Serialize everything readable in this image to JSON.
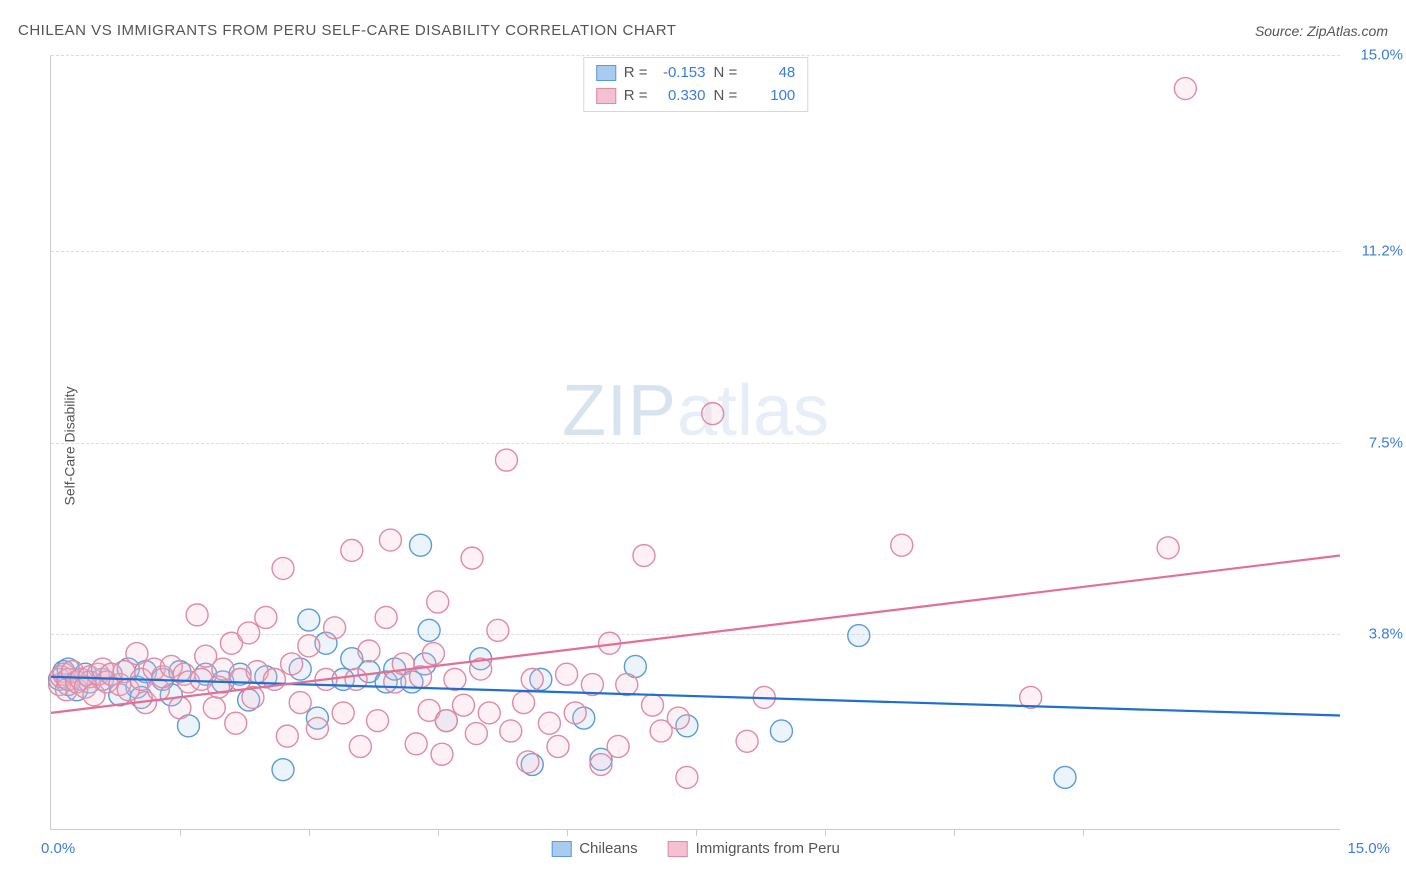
{
  "title": "CHILEAN VS IMMIGRANTS FROM PERU SELF-CARE DISABILITY CORRELATION CHART",
  "source_prefix": "Source: ",
  "source_link": "ZipAtlas.com",
  "ylabel": "Self-Care Disability",
  "watermark_a": "ZIP",
  "watermark_b": "atlas",
  "chart": {
    "type": "scatter",
    "xlim": [
      0.0,
      15.0
    ],
    "ylim": [
      0.0,
      15.0
    ],
    "plot_background": "#ffffff",
    "grid_color": "#dddddd",
    "axis_color": "#cccccc",
    "tick_label_color": "#3b7dd8",
    "tick_label_fontsize": 15,
    "yticks": [
      {
        "value": 3.8,
        "label": "3.8%"
      },
      {
        "value": 7.5,
        "label": "7.5%"
      },
      {
        "value": 11.2,
        "label": "11.2%"
      },
      {
        "value": 15.0,
        "label": "15.0%"
      }
    ],
    "xtick_values": [
      1.5,
      3.0,
      4.5,
      6.0,
      7.5,
      9.0,
      10.5,
      12.0
    ],
    "xaxis_min_label": "0.0%",
    "xaxis_max_label": "15.0%",
    "marker_radius": 11,
    "marker_stroke_width": 1.4,
    "marker_fill_opacity": 0.22,
    "trend_line_width": 2.2
  },
  "series": [
    {
      "name": "Chileans",
      "color_stroke": "#5a9bd5",
      "color_fill": "#a9cbef",
      "trend_color": "#1f6fd0",
      "R": "-0.153",
      "N": "48",
      "trend": {
        "x1": 0.0,
        "y1": 2.95,
        "x2": 15.0,
        "y2": 2.2
      },
      "points": [
        [
          0.1,
          2.9
        ],
        [
          0.15,
          3.05
        ],
        [
          0.2,
          2.8
        ],
        [
          0.2,
          3.1
        ],
        [
          0.3,
          2.7
        ],
        [
          0.4,
          3.0
        ],
        [
          0.45,
          2.85
        ],
        [
          0.6,
          2.9
        ],
        [
          0.7,
          3.0
        ],
        [
          0.8,
          2.6
        ],
        [
          0.9,
          3.1
        ],
        [
          1.0,
          2.75
        ],
        [
          1.05,
          2.55
        ],
        [
          1.1,
          3.05
        ],
        [
          1.3,
          2.9
        ],
        [
          1.4,
          2.6
        ],
        [
          1.5,
          3.05
        ],
        [
          1.6,
          2.0
        ],
        [
          1.8,
          3.0
        ],
        [
          2.0,
          2.85
        ],
        [
          2.2,
          3.0
        ],
        [
          2.3,
          2.5
        ],
        [
          2.5,
          2.95
        ],
        [
          2.7,
          1.15
        ],
        [
          2.9,
          3.1
        ],
        [
          3.0,
          4.05
        ],
        [
          3.1,
          2.15
        ],
        [
          3.2,
          3.6
        ],
        [
          3.4,
          2.9
        ],
        [
          3.5,
          3.3
        ],
        [
          3.7,
          3.05
        ],
        [
          3.9,
          2.85
        ],
        [
          4.0,
          3.1
        ],
        [
          4.2,
          2.85
        ],
        [
          4.3,
          5.5
        ],
        [
          4.35,
          3.2
        ],
        [
          4.4,
          3.85
        ],
        [
          4.6,
          2.1
        ],
        [
          5.0,
          3.3
        ],
        [
          5.6,
          1.25
        ],
        [
          5.7,
          2.9
        ],
        [
          6.2,
          2.15
        ],
        [
          6.4,
          1.35
        ],
        [
          6.8,
          3.15
        ],
        [
          7.4,
          2.0
        ],
        [
          8.5,
          1.9
        ],
        [
          9.4,
          3.75
        ],
        [
          11.8,
          1.0
        ]
      ]
    },
    {
      "name": "Immigrants from Peru",
      "color_stroke": "#e08aa4",
      "color_fill": "#f5c0d0",
      "trend_color": "#e36f94",
      "R": "0.330",
      "N": "100",
      "trend": {
        "x1": 0.0,
        "y1": 2.25,
        "x2": 15.0,
        "y2": 5.3
      },
      "points": [
        [
          0.1,
          2.8
        ],
        [
          0.12,
          2.95
        ],
        [
          0.15,
          3.0
        ],
        [
          0.18,
          2.7
        ],
        [
          0.2,
          2.9
        ],
        [
          0.25,
          3.05
        ],
        [
          0.3,
          2.85
        ],
        [
          0.35,
          2.9
        ],
        [
          0.4,
          2.75
        ],
        [
          0.45,
          2.95
        ],
        [
          0.5,
          2.6
        ],
        [
          0.55,
          3.0
        ],
        [
          0.6,
          3.1
        ],
        [
          0.65,
          2.85
        ],
        [
          0.7,
          3.0
        ],
        [
          0.8,
          2.8
        ],
        [
          0.85,
          3.05
        ],
        [
          0.9,
          2.7
        ],
        [
          1.0,
          3.4
        ],
        [
          1.05,
          2.9
        ],
        [
          1.1,
          2.45
        ],
        [
          1.2,
          3.1
        ],
        [
          1.25,
          2.7
        ],
        [
          1.3,
          2.95
        ],
        [
          1.4,
          3.15
        ],
        [
          1.5,
          2.35
        ],
        [
          1.55,
          3.0
        ],
        [
          1.6,
          2.85
        ],
        [
          1.7,
          4.15
        ],
        [
          1.75,
          2.9
        ],
        [
          1.8,
          3.35
        ],
        [
          1.9,
          2.35
        ],
        [
          1.95,
          2.75
        ],
        [
          2.0,
          3.1
        ],
        [
          2.1,
          3.6
        ],
        [
          2.15,
          2.05
        ],
        [
          2.2,
          2.9
        ],
        [
          2.3,
          3.8
        ],
        [
          2.35,
          2.55
        ],
        [
          2.4,
          3.05
        ],
        [
          2.5,
          4.1
        ],
        [
          2.6,
          2.9
        ],
        [
          2.7,
          5.05
        ],
        [
          2.75,
          1.8
        ],
        [
          2.8,
          3.2
        ],
        [
          2.9,
          2.45
        ],
        [
          3.0,
          3.55
        ],
        [
          3.1,
          1.95
        ],
        [
          3.2,
          2.9
        ],
        [
          3.3,
          3.9
        ],
        [
          3.4,
          2.25
        ],
        [
          3.5,
          5.4
        ],
        [
          3.55,
          2.9
        ],
        [
          3.6,
          1.6
        ],
        [
          3.7,
          3.45
        ],
        [
          3.8,
          2.1
        ],
        [
          3.9,
          4.1
        ],
        [
          3.95,
          5.6
        ],
        [
          4.0,
          2.85
        ],
        [
          4.1,
          3.2
        ],
        [
          4.25,
          1.65
        ],
        [
          4.3,
          2.95
        ],
        [
          4.4,
          2.3
        ],
        [
          4.45,
          3.4
        ],
        [
          4.5,
          4.4
        ],
        [
          4.55,
          1.45
        ],
        [
          4.6,
          2.1
        ],
        [
          4.7,
          2.9
        ],
        [
          4.8,
          2.4
        ],
        [
          4.9,
          5.25
        ],
        [
          4.95,
          1.85
        ],
        [
          5.0,
          3.1
        ],
        [
          5.1,
          2.25
        ],
        [
          5.2,
          3.85
        ],
        [
          5.3,
          7.15
        ],
        [
          5.35,
          1.9
        ],
        [
          5.5,
          2.45
        ],
        [
          5.55,
          1.3
        ],
        [
          5.6,
          2.9
        ],
        [
          5.8,
          2.05
        ],
        [
          5.9,
          1.6
        ],
        [
          6.0,
          3.0
        ],
        [
          6.1,
          2.25
        ],
        [
          6.3,
          2.8
        ],
        [
          6.4,
          1.25
        ],
        [
          6.5,
          3.6
        ],
        [
          6.6,
          1.6
        ],
        [
          6.7,
          2.8
        ],
        [
          6.9,
          5.3
        ],
        [
          7.0,
          2.4
        ],
        [
          7.1,
          1.9
        ],
        [
          7.3,
          2.15
        ],
        [
          7.4,
          1.0
        ],
        [
          7.7,
          8.05
        ],
        [
          8.1,
          1.7
        ],
        [
          8.3,
          2.55
        ],
        [
          9.9,
          5.5
        ],
        [
          11.4,
          2.55
        ],
        [
          13.0,
          5.45
        ],
        [
          13.2,
          14.35
        ]
      ]
    }
  ],
  "legend_bottom": [
    {
      "label": "Chileans",
      "series": 0
    },
    {
      "label": "Immigrants from Peru",
      "series": 1
    }
  ],
  "stat_legend": {
    "R_label": "R =",
    "N_label": "N ="
  }
}
